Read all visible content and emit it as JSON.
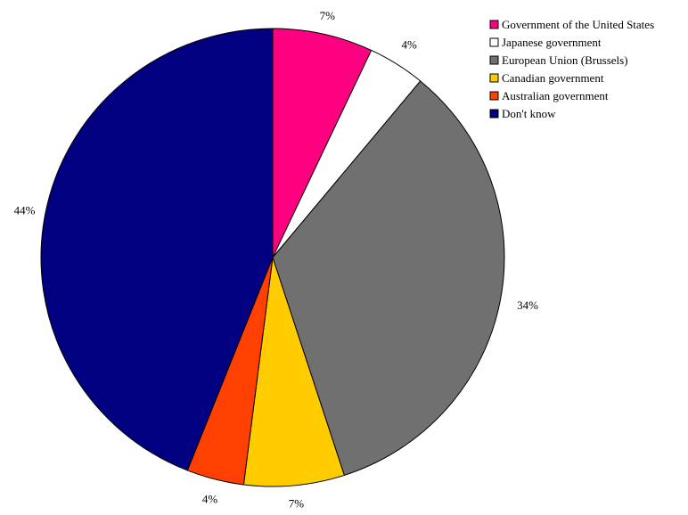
{
  "chart_data": {
    "type": "pie",
    "title": "",
    "slices": [
      {
        "label": "Government of the United States",
        "value": 7,
        "display": "7%",
        "color": "#ff0080"
      },
      {
        "label": "Japanese government",
        "value": 4,
        "display": "4%",
        "color": "#ffffff"
      },
      {
        "label": "European Union (Brussels)",
        "value": 34,
        "display": "34%",
        "color": "#707070"
      },
      {
        "label": "Canadian government",
        "value": 7,
        "display": "7%",
        "color": "#ffcc00"
      },
      {
        "label": "Australian government",
        "value": 4,
        "display": "4%",
        "color": "#ff4000"
      },
      {
        "label": "Don't know",
        "value": 44,
        "display": "44%",
        "color": "#000080"
      }
    ],
    "legend_placement": "top-right",
    "start": "12 o'clock",
    "direction": "clockwise"
  }
}
